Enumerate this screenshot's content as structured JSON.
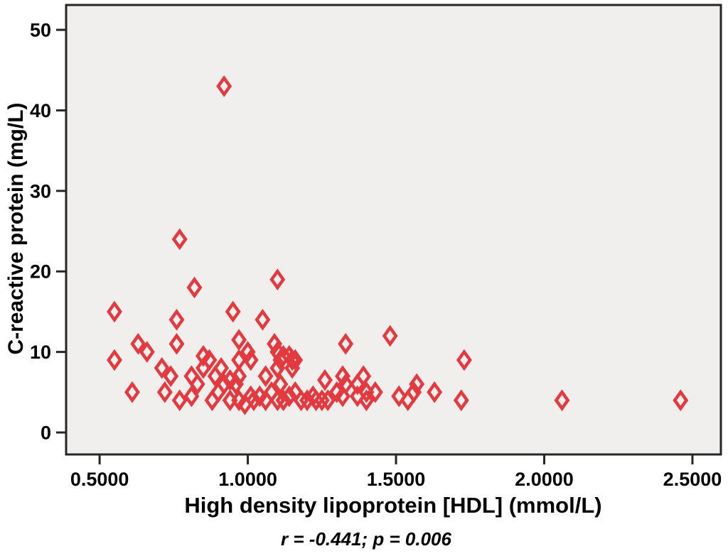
{
  "figure": {
    "background": "#ffffff",
    "plot_background": "#f0efee",
    "frame_color": "#262626",
    "tick_color": "#262626",
    "text_color": "#000000"
  },
  "chart_data": {
    "type": "scatter",
    "title": "",
    "xlabel": "High density lipoprotein [HDL] (mmol/L)",
    "ylabel": "C-reactive protein (mg/L)",
    "annotation": "r = -0.441; p = 0.006",
    "legend": false,
    "grid": false,
    "marker": {
      "shape": "open-diamond",
      "color": "#e43a3f"
    },
    "xlim": [
      0.387,
      2.596
    ],
    "ylim": [
      -2.73,
      53.09
    ],
    "x_ticks": [
      {
        "value": 0.5,
        "label": "0.5000"
      },
      {
        "value": 1.0,
        "label": "1.0000"
      },
      {
        "value": 1.5,
        "label": "1.5000"
      },
      {
        "value": 2.0,
        "label": "2.0000"
      },
      {
        "value": 2.5,
        "label": "2.5000"
      }
    ],
    "y_ticks": [
      {
        "value": 0,
        "label": "0"
      },
      {
        "value": 10,
        "label": "10"
      },
      {
        "value": 20,
        "label": "20"
      },
      {
        "value": 30,
        "label": "30"
      },
      {
        "value": 40,
        "label": "40"
      },
      {
        "value": 50,
        "label": "50"
      }
    ],
    "points": [
      [
        0.55,
        15
      ],
      [
        0.55,
        9
      ],
      [
        0.61,
        5
      ],
      [
        0.63,
        11
      ],
      [
        0.66,
        10
      ],
      [
        0.71,
        8
      ],
      [
        0.72,
        5
      ],
      [
        0.74,
        7
      ],
      [
        0.76,
        14
      ],
      [
        0.76,
        11
      ],
      [
        0.77,
        24
      ],
      [
        0.77,
        4
      ],
      [
        0.81,
        7
      ],
      [
        0.81,
        4.5
      ],
      [
        0.82,
        18
      ],
      [
        0.83,
        6
      ],
      [
        0.85,
        9.5
      ],
      [
        0.85,
        8
      ],
      [
        0.87,
        9
      ],
      [
        0.88,
        4
      ],
      [
        0.89,
        7
      ],
      [
        0.9,
        5
      ],
      [
        0.91,
        8
      ],
      [
        0.92,
        43
      ],
      [
        0.92,
        6
      ],
      [
        0.94,
        6.5
      ],
      [
        0.94,
        4
      ],
      [
        0.95,
        15
      ],
      [
        0.96,
        6
      ],
      [
        0.97,
        11.5
      ],
      [
        0.97,
        9
      ],
      [
        0.97,
        7
      ],
      [
        0.97,
        4
      ],
      [
        0.99,
        3.5
      ],
      [
        1.0,
        10
      ],
      [
        1.01,
        9
      ],
      [
        1.01,
        4.5
      ],
      [
        1.02,
        4
      ],
      [
        1.04,
        4.5
      ],
      [
        1.05,
        14
      ],
      [
        1.06,
        7
      ],
      [
        1.06,
        4
      ],
      [
        1.08,
        5
      ],
      [
        1.09,
        11
      ],
      [
        1.1,
        19
      ],
      [
        1.1,
        10
      ],
      [
        1.1,
        8
      ],
      [
        1.1,
        4
      ],
      [
        1.11,
        9
      ],
      [
        1.11,
        6
      ],
      [
        1.12,
        9.5
      ],
      [
        1.12,
        4
      ],
      [
        1.14,
        9.5
      ],
      [
        1.14,
        4.5
      ],
      [
        1.15,
        9
      ],
      [
        1.15,
        8
      ],
      [
        1.16,
        9
      ],
      [
        1.16,
        5
      ],
      [
        1.18,
        4
      ],
      [
        1.2,
        4
      ],
      [
        1.22,
        4.5
      ],
      [
        1.23,
        4
      ],
      [
        1.25,
        4
      ],
      [
        1.26,
        6.5
      ],
      [
        1.27,
        4
      ],
      [
        1.3,
        5
      ],
      [
        1.32,
        7
      ],
      [
        1.32,
        4.5
      ],
      [
        1.33,
        11
      ],
      [
        1.33,
        6
      ],
      [
        1.37,
        6
      ],
      [
        1.37,
        4.5
      ],
      [
        1.39,
        7
      ],
      [
        1.4,
        5
      ],
      [
        1.4,
        4
      ],
      [
        1.43,
        5
      ],
      [
        1.48,
        12
      ],
      [
        1.51,
        4.5
      ],
      [
        1.54,
        4
      ],
      [
        1.56,
        5
      ],
      [
        1.57,
        6
      ],
      [
        1.63,
        5
      ],
      [
        1.72,
        4
      ],
      [
        1.73,
        9
      ],
      [
        2.06,
        4
      ],
      [
        2.46,
        4
      ]
    ]
  }
}
